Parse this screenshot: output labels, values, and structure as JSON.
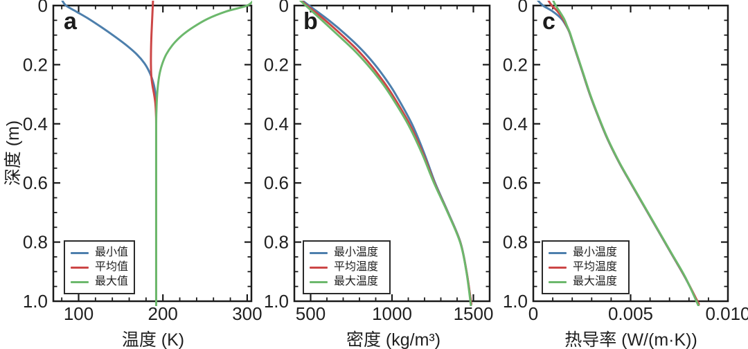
{
  "figure": {
    "y_axis_title": "深度 (m)",
    "background": "#ffffff",
    "axis_color": "#1a1a1a",
    "text_color": "#1f1f1f"
  },
  "chart_data": [
    {
      "id": "panel-a",
      "type": "line",
      "panel_label": "a",
      "xlabel": "温度 (K)",
      "ylabel": "深度 (m)",
      "xlim": [
        70,
        305
      ],
      "ylim": [
        0,
        1
      ],
      "y_inverted": true,
      "xticks": [
        100,
        200,
        300
      ],
      "xtick_labels": [
        "100",
        "200",
        "300"
      ],
      "x_minor_step": 20,
      "yticks": [
        0,
        0.2,
        0.4,
        0.6,
        0.8,
        1
      ],
      "ytick_labels": [
        "0",
        "0.2",
        "0.4",
        "0.6",
        "0.8",
        "1.0"
      ],
      "y_minor_step": 0.05,
      "grid": false,
      "legend": {
        "position": "bottom-left",
        "entries": [
          {
            "label": "最小值",
            "color": "#4d7fac"
          },
          {
            "label": "平均值",
            "color": "#cc4646"
          },
          {
            "label": "最大值",
            "color": "#6cb86c"
          }
        ]
      },
      "series": [
        {
          "name": "最小值",
          "color": "#4d7fac",
          "points": [
            [
              80,
              -0.02
            ],
            [
              85,
              0
            ],
            [
              97,
              0.02
            ],
            [
              112,
              0.045
            ],
            [
              128,
              0.075
            ],
            [
              143,
              0.105
            ],
            [
              157,
              0.135
            ],
            [
              169,
              0.165
            ],
            [
              178,
              0.195
            ],
            [
              184,
              0.225
            ],
            [
              188,
              0.255
            ],
            [
              190.5,
              0.285
            ],
            [
              191.6,
              0.32
            ],
            [
              192,
              0.36
            ],
            [
              192,
              0.6
            ],
            [
              192,
              1.02
            ]
          ]
        },
        {
          "name": "平均值",
          "color": "#cc4646",
          "points": [
            [
              188.3,
              -0.02
            ],
            [
              188,
              0
            ],
            [
              187.2,
              0.05
            ],
            [
              186.4,
              0.1
            ],
            [
              185.9,
              0.15
            ],
            [
              185.8,
              0.2
            ],
            [
              186.3,
              0.24
            ],
            [
              187.6,
              0.27
            ],
            [
              189.5,
              0.3
            ],
            [
              191,
              0.33
            ],
            [
              191.8,
              0.37
            ],
            [
              192,
              0.42
            ],
            [
              192,
              0.7
            ],
            [
              192,
              1.02
            ]
          ]
        },
        {
          "name": "最大值",
          "color": "#6cb86c",
          "points": [
            [
              308,
              -0.02
            ],
            [
              300,
              0
            ],
            [
              275,
              0.02
            ],
            [
              253,
              0.045
            ],
            [
              235,
              0.075
            ],
            [
              221,
              0.105
            ],
            [
              211,
              0.135
            ],
            [
              204,
              0.165
            ],
            [
              199.5,
              0.195
            ],
            [
              196.5,
              0.225
            ],
            [
              194.5,
              0.26
            ],
            [
              193.2,
              0.3
            ],
            [
              192.4,
              0.35
            ],
            [
              192,
              0.42
            ],
            [
              192,
              0.7
            ],
            [
              192,
              1.02
            ]
          ]
        }
      ]
    },
    {
      "id": "panel-b",
      "type": "line",
      "panel_label": "b",
      "xlabel": "密度 (kg/m³)",
      "ylabel": "深度 (m)",
      "xlim": [
        400,
        1600
      ],
      "ylim": [
        0,
        1
      ],
      "y_inverted": true,
      "xticks": [
        500,
        1000,
        1500
      ],
      "xtick_labels": [
        "500",
        "1000",
        "1500"
      ],
      "x_minor_step": 100,
      "yticks": [
        0,
        0.2,
        0.4,
        0.6,
        0.8,
        1
      ],
      "ytick_labels": [
        "0",
        "0.2",
        "0.4",
        "0.6",
        "0.8",
        "1.0"
      ],
      "y_minor_step": 0.05,
      "grid": false,
      "legend": {
        "position": "bottom-left",
        "entries": [
          {
            "label": "最小温度",
            "color": "#4d7fac"
          },
          {
            "label": "平均温度",
            "color": "#cc4646"
          },
          {
            "label": "最大温度",
            "color": "#6cb86c"
          }
        ]
      },
      "series": [
        {
          "name": "最小温度",
          "color": "#4d7fac",
          "points": [
            [
              442,
              -0.02
            ],
            [
              490,
              0
            ],
            [
              612,
              0.05
            ],
            [
              720,
              0.1
            ],
            [
              815,
              0.15
            ],
            [
              895,
              0.2
            ],
            [
              963,
              0.25
            ],
            [
              1022,
              0.3
            ],
            [
              1122,
              0.4
            ],
            [
              1198,
              0.5
            ],
            [
              1265,
              0.6
            ],
            [
              1345,
              0.7
            ],
            [
              1420,
              0.8
            ],
            [
              1458,
              0.9
            ],
            [
              1487,
              1.01
            ]
          ]
        },
        {
          "name": "平均温度",
          "color": "#cc4646",
          "points": [
            [
              435,
              -0.02
            ],
            [
              478,
              0
            ],
            [
              590,
              0.05
            ],
            [
              692,
              0.1
            ],
            [
              787,
              0.15
            ],
            [
              868,
              0.2
            ],
            [
              938,
              0.25
            ],
            [
              1000,
              0.3
            ],
            [
              1107,
              0.4
            ],
            [
              1190,
              0.5
            ],
            [
              1261,
              0.6
            ],
            [
              1343,
              0.7
            ],
            [
              1419,
              0.8
            ],
            [
              1458,
              0.9
            ],
            [
              1487,
              1.01
            ]
          ]
        },
        {
          "name": "最大温度",
          "color": "#6cb86c",
          "points": [
            [
              431,
              -0.02
            ],
            [
              470,
              0
            ],
            [
              570,
              0.05
            ],
            [
              668,
              0.1
            ],
            [
              765,
              0.15
            ],
            [
              849,
              0.2
            ],
            [
              923,
              0.25
            ],
            [
              987,
              0.3
            ],
            [
              1097,
              0.4
            ],
            [
              1184,
              0.5
            ],
            [
              1258,
              0.6
            ],
            [
              1342,
              0.7
            ],
            [
              1418,
              0.8
            ],
            [
              1457,
              0.9
            ],
            [
              1486,
              1.02
            ]
          ]
        }
      ]
    },
    {
      "id": "panel-c",
      "type": "line",
      "panel_label": "c",
      "xlabel": "热导率 (W/(m·K))",
      "ylabel": "深度 (m)",
      "xlim": [
        0,
        0.01
      ],
      "ylim": [
        0,
        1
      ],
      "y_inverted": true,
      "xticks": [
        0,
        0.005,
        0.01
      ],
      "xtick_labels": [
        "0",
        "0.005",
        "0.010"
      ],
      "x_minor_step": 0.001,
      "yticks": [
        0,
        0.2,
        0.4,
        0.6,
        0.8,
        1
      ],
      "ytick_labels": [
        "0",
        "0.2",
        "0.4",
        "0.6",
        "0.8",
        "1.0"
      ],
      "y_minor_step": 0.05,
      "grid": false,
      "legend": {
        "position": "bottom-left",
        "entries": [
          {
            "label": "最小温度",
            "color": "#4d7fac"
          },
          {
            "label": "平均温度",
            "color": "#cc4646"
          },
          {
            "label": "最大温度",
            "color": "#6cb86c"
          }
        ]
      },
      "series": [
        {
          "name": "最小温度",
          "color": "#4d7fac",
          "points": [
            [
              0.0002,
              -0.02
            ],
            [
              0.0005,
              0
            ],
            [
              0.001,
              0.02
            ],
            [
              0.00145,
              0.045
            ],
            [
              0.0017,
              0.07
            ],
            [
              0.00185,
              0.09
            ],
            [
              0.002,
              0.12
            ],
            [
              0.00225,
              0.17
            ],
            [
              0.00255,
              0.23
            ],
            [
              0.0029,
              0.3
            ],
            [
              0.0033,
              0.37
            ],
            [
              0.0038,
              0.45
            ],
            [
              0.0044,
              0.53
            ],
            [
              0.005,
              0.6
            ],
            [
              0.0057,
              0.68
            ],
            [
              0.0064,
              0.76
            ],
            [
              0.0071,
              0.84
            ],
            [
              0.0078,
              0.92
            ],
            [
              0.0085,
              1.01
            ]
          ]
        },
        {
          "name": "平均温度",
          "color": "#cc4646",
          "points": [
            [
              0.00075,
              -0.02
            ],
            [
              0.00095,
              0
            ],
            [
              0.00125,
              0.02
            ],
            [
              0.00152,
              0.045
            ],
            [
              0.00172,
              0.07
            ],
            [
              0.00186,
              0.09
            ],
            [
              0.00201,
              0.12
            ],
            [
              0.00226,
              0.17
            ],
            [
              0.00256,
              0.23
            ],
            [
              0.00291,
              0.3
            ],
            [
              0.00331,
              0.37
            ],
            [
              0.00381,
              0.45
            ],
            [
              0.00441,
              0.53
            ],
            [
              0.00501,
              0.6
            ],
            [
              0.00571,
              0.68
            ],
            [
              0.00641,
              0.76
            ],
            [
              0.00711,
              0.84
            ],
            [
              0.00781,
              0.92
            ],
            [
              0.00851,
              1.01
            ]
          ]
        },
        {
          "name": "最大温度",
          "color": "#6cb86c",
          "points": [
            [
              0.001,
              -0.02
            ],
            [
              0.00115,
              0
            ],
            [
              0.00135,
              0.02
            ],
            [
              0.00158,
              0.045
            ],
            [
              0.00174,
              0.07
            ],
            [
              0.00187,
              0.09
            ],
            [
              0.00202,
              0.12
            ],
            [
              0.00227,
              0.17
            ],
            [
              0.00257,
              0.23
            ],
            [
              0.00292,
              0.3
            ],
            [
              0.00332,
              0.37
            ],
            [
              0.00382,
              0.45
            ],
            [
              0.00442,
              0.53
            ],
            [
              0.00502,
              0.6
            ],
            [
              0.00572,
              0.68
            ],
            [
              0.00642,
              0.76
            ],
            [
              0.00712,
              0.84
            ],
            [
              0.00782,
              0.92
            ],
            [
              0.00852,
              1.02
            ]
          ]
        }
      ]
    }
  ]
}
